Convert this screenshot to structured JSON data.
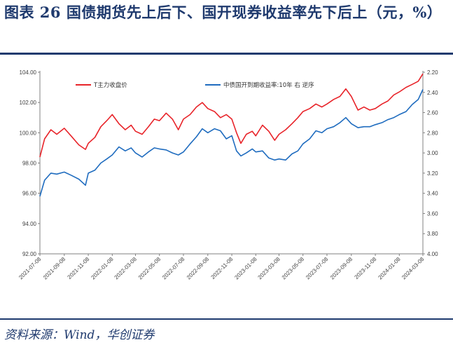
{
  "figure": {
    "title": "图表 26   国债期货先上后下、国开现券收益率先下后上（元，%）",
    "source": "资料来源：Wind，华创证券"
  },
  "colors": {
    "accent": "#1f3a6e",
    "series_red": "#e8242a",
    "series_blue": "#1f6cbf"
  },
  "chart_data": {
    "type": "line",
    "title": "",
    "xlabel": "",
    "ylabel": "",
    "x_ticks": [
      "2021-07-08",
      "2021-09-08",
      "2021-11-08",
      "2022-01-08",
      "2022-03-08",
      "2022-05-08",
      "2022-07-08",
      "2022-09-08",
      "2022-11-08",
      "2023-01-08",
      "2023-03-08",
      "2023-05-08",
      "2023-07-08",
      "2023-09-08",
      "2023-11-08",
      "2024-01-08",
      "2024-03-08"
    ],
    "y_left": {
      "min": 92,
      "max": 104,
      "ticks": [
        "92.00",
        "94.00",
        "96.00",
        "98.00",
        "100.00",
        "102.00",
        "104.00"
      ]
    },
    "y_right": {
      "min": 2.2,
      "max": 4.0,
      "reversed": true,
      "ticks": [
        "2.20",
        "2.40",
        "2.60",
        "2.80",
        "3.00",
        "3.20",
        "3.40",
        "3.60",
        "3.80",
        "4.00"
      ]
    },
    "legend_placement": "top",
    "grid": false,
    "series": [
      {
        "name": "T主力收盘价",
        "axis": "left",
        "color": "#e8242a",
        "x": [
          "2021-07-08",
          "2021-07-20",
          "2021-08-05",
          "2021-08-20",
          "2021-09-08",
          "2021-09-25",
          "2021-10-15",
          "2021-11-01",
          "2021-11-08",
          "2021-11-25",
          "2021-12-10",
          "2021-12-25",
          "2022-01-08",
          "2022-01-25",
          "2022-02-10",
          "2022-02-25",
          "2022-03-08",
          "2022-03-25",
          "2022-04-10",
          "2022-04-25",
          "2022-05-08",
          "2022-05-25",
          "2022-06-10",
          "2022-06-25",
          "2022-07-08",
          "2022-07-25",
          "2022-08-10",
          "2022-08-25",
          "2022-09-08",
          "2022-09-25",
          "2022-10-10",
          "2022-10-25",
          "2022-11-08",
          "2022-11-20",
          "2022-12-01",
          "2022-12-15",
          "2022-12-30",
          "2023-01-08",
          "2023-01-25",
          "2023-02-10",
          "2023-02-25",
          "2023-03-08",
          "2023-03-25",
          "2023-04-10",
          "2023-04-25",
          "2023-05-08",
          "2023-05-25",
          "2023-06-10",
          "2023-06-25",
          "2023-07-08",
          "2023-07-25",
          "2023-08-10",
          "2023-08-25",
          "2023-09-08",
          "2023-09-25",
          "2023-10-10",
          "2023-10-25",
          "2023-11-08",
          "2023-11-25",
          "2023-12-10",
          "2023-12-25",
          "2024-01-08",
          "2024-01-25",
          "2024-02-10",
          "2024-02-25",
          "2024-03-08"
        ],
        "values": [
          98.4,
          99.6,
          100.2,
          99.9,
          100.3,
          99.8,
          99.2,
          98.9,
          99.3,
          99.7,
          100.4,
          100.8,
          101.2,
          100.6,
          100.2,
          100.5,
          100.1,
          99.9,
          100.4,
          100.9,
          100.8,
          101.3,
          100.9,
          100.2,
          100.9,
          101.2,
          101.7,
          102.0,
          101.6,
          101.4,
          101.0,
          101.2,
          100.9,
          100.0,
          99.3,
          99.9,
          100.1,
          99.8,
          100.5,
          100.1,
          99.5,
          99.9,
          100.2,
          100.6,
          101.0,
          101.4,
          101.6,
          101.9,
          101.7,
          101.9,
          102.2,
          102.4,
          102.9,
          102.4,
          101.5,
          101.7,
          101.5,
          101.6,
          101.9,
          102.1,
          102.5,
          102.7,
          103.0,
          103.2,
          103.4,
          103.9
        ]
      },
      {
        "name": "中债国开到期收益率:10年  右  逆序",
        "axis": "right",
        "color": "#1f6cbf",
        "x": [
          "2021-07-08",
          "2021-07-20",
          "2021-08-05",
          "2021-08-20",
          "2021-09-08",
          "2021-09-25",
          "2021-10-15",
          "2021-11-01",
          "2021-11-08",
          "2021-11-25",
          "2021-12-10",
          "2021-12-25",
          "2022-01-08",
          "2022-01-25",
          "2022-02-10",
          "2022-02-25",
          "2022-03-08",
          "2022-03-25",
          "2022-04-10",
          "2022-04-25",
          "2022-05-08",
          "2022-05-25",
          "2022-06-10",
          "2022-06-25",
          "2022-07-08",
          "2022-07-25",
          "2022-08-10",
          "2022-08-25",
          "2022-09-08",
          "2022-09-25",
          "2022-10-10",
          "2022-10-25",
          "2022-11-08",
          "2022-11-20",
          "2022-12-01",
          "2022-12-15",
          "2022-12-30",
          "2023-01-08",
          "2023-01-25",
          "2023-02-10",
          "2023-02-25",
          "2023-03-08",
          "2023-03-25",
          "2023-04-10",
          "2023-04-25",
          "2023-05-08",
          "2023-05-25",
          "2023-06-10",
          "2023-06-25",
          "2023-07-08",
          "2023-07-25",
          "2023-08-10",
          "2023-08-25",
          "2023-09-08",
          "2023-09-25",
          "2023-10-10",
          "2023-10-25",
          "2023-11-08",
          "2023-11-25",
          "2023-12-10",
          "2023-12-25",
          "2024-01-08",
          "2024-01-25",
          "2024-02-10",
          "2024-02-25",
          "2024-03-08"
        ],
        "values": [
          3.43,
          3.27,
          3.2,
          3.21,
          3.19,
          3.22,
          3.26,
          3.32,
          3.2,
          3.17,
          3.1,
          3.06,
          3.02,
          2.94,
          2.98,
          2.95,
          3.0,
          3.04,
          2.99,
          2.95,
          2.96,
          2.97,
          3.0,
          3.02,
          2.99,
          2.91,
          2.84,
          2.76,
          2.8,
          2.76,
          2.78,
          2.86,
          2.83,
          2.98,
          3.03,
          3.0,
          2.96,
          2.99,
          2.98,
          3.05,
          3.07,
          3.06,
          3.07,
          3.01,
          2.98,
          2.91,
          2.86,
          2.78,
          2.8,
          2.76,
          2.74,
          2.7,
          2.65,
          2.71,
          2.75,
          2.74,
          2.74,
          2.72,
          2.7,
          2.67,
          2.65,
          2.62,
          2.59,
          2.52,
          2.47,
          2.37
        ]
      }
    ]
  }
}
